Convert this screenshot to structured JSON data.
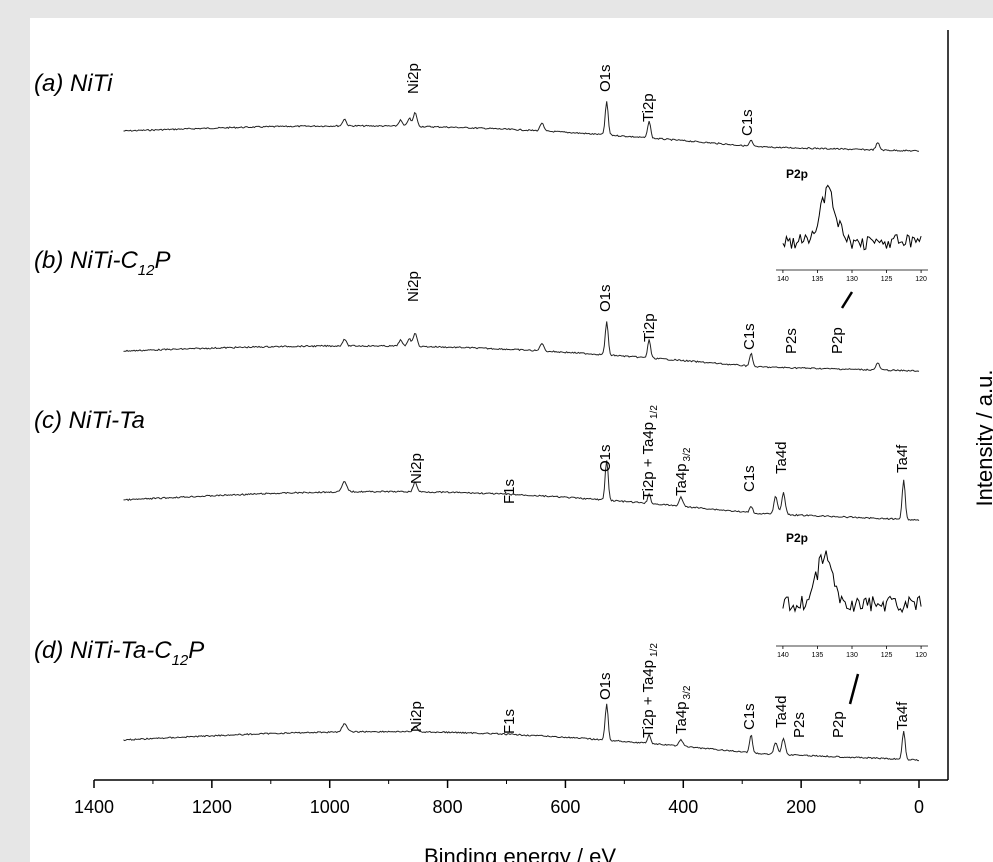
{
  "chart_data": {
    "type": "line",
    "xlabel": "Binding energy / eV",
    "ylabel": "Intensity / a.u.",
    "xlim": [
      1400,
      0
    ],
    "x_reversed": true,
    "x_ticks": [
      "1400",
      "1200",
      "1000",
      "800",
      "600",
      "400",
      "200",
      "0"
    ],
    "y_ticks_shown": false,
    "grid": false,
    "series": [
      {
        "name": "(a) NiTi",
        "peaks": [
          {
            "label": "Ni2p",
            "x": 855
          },
          {
            "label": "O1s",
            "x": 530
          },
          {
            "label": "Ti2p",
            "x": 458
          },
          {
            "label": "C1s",
            "x": 285
          }
        ]
      },
      {
        "name": "(b) NiTi-C12P",
        "peaks": [
          {
            "label": "Ni2p",
            "x": 855
          },
          {
            "label": "O1s",
            "x": 530
          },
          {
            "label": "Ti2p",
            "x": 458
          },
          {
            "label": "C1s",
            "x": 285
          },
          {
            "label": "P2s",
            "x": 191
          },
          {
            "label": "P2p",
            "x": 133
          }
        ],
        "inset": {
          "title": "P2p",
          "x_ticks": [
            "140",
            "135",
            "130",
            "125",
            "120"
          ],
          "peak_x": 133.5
        }
      },
      {
        "name": "(c) NiTi-Ta",
        "peaks": [
          {
            "label": "Ni2p",
            "x": 855
          },
          {
            "label": "F1s",
            "x": 686
          },
          {
            "label": "O1s",
            "x": 530
          },
          {
            "label": "Ti2p + Ta4p 1/2",
            "x": 458
          },
          {
            "label": "Ta4p 3/2",
            "x": 404
          },
          {
            "label": "C1s",
            "x": 285
          },
          {
            "label": "Ta4d",
            "x": 230
          },
          {
            "label": "Ta4f",
            "x": 26
          }
        ]
      },
      {
        "name": "(d) NiTi-Ta-C12P",
        "peaks": [
          {
            "label": "Ni2p",
            "x": 855
          },
          {
            "label": "F1s",
            "x": 686
          },
          {
            "label": "O1s",
            "x": 530
          },
          {
            "label": "Ti2p + Ta4p 1/2",
            "x": 458
          },
          {
            "label": "Ta4p 3/2",
            "x": 404
          },
          {
            "label": "C1s",
            "x": 285
          },
          {
            "label": "Ta4d",
            "x": 230
          },
          {
            "label": "P2s",
            "x": 191
          },
          {
            "label": "P2p",
            "x": 133
          },
          {
            "label": "Ta4f",
            "x": 26
          }
        ],
        "inset": {
          "title": "P2p",
          "x_ticks": [
            "140",
            "135",
            "130",
            "125",
            "120"
          ],
          "peak_x": 134
        }
      }
    ]
  },
  "labels": {
    "a": {
      "pre": "(a) NiTi"
    },
    "b": {
      "pre": "(b) NiTi-C",
      "sub": "12",
      "post": "P"
    },
    "c": {
      "pre": "(c) NiTi-Ta"
    },
    "d": {
      "pre": "(d) NiTi-Ta-C",
      "sub": "12",
      "post": "P"
    }
  },
  "peak_labels": {
    "ni2p": "Ni2p",
    "o1s": "O1s",
    "ti2p": "Ti2p",
    "c1s": "C1s",
    "p2s": "P2s",
    "p2p": "P2p",
    "f1s": "F1s",
    "ta4d": "Ta4d",
    "ta4f": "Ta4f",
    "ti2p_ta": "Ti2p + Ta4p",
    "half": "1/2",
    "ta4p": "Ta4p",
    "three_half": "3/2"
  },
  "inset_title": "P2p",
  "inset_ticks": [
    "140",
    "135",
    "130",
    "125",
    "120"
  ]
}
